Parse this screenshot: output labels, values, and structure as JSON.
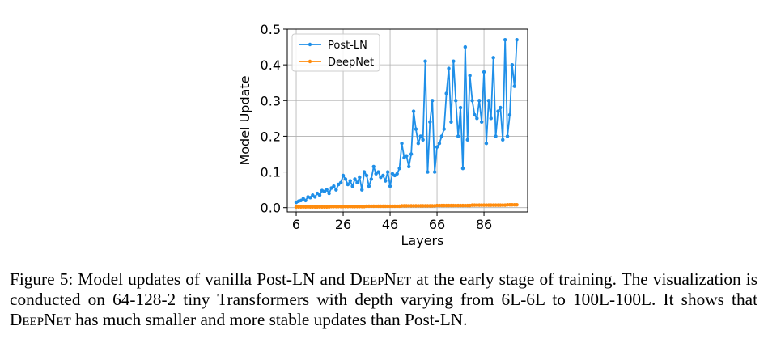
{
  "chart_data": {
    "type": "line",
    "xlabel": "Layers",
    "ylabel": "Model Update",
    "x": [
      6,
      7,
      8,
      9,
      10,
      11,
      12,
      13,
      14,
      15,
      16,
      17,
      18,
      19,
      20,
      21,
      22,
      23,
      24,
      25,
      26,
      27,
      28,
      29,
      30,
      31,
      32,
      33,
      34,
      35,
      36,
      37,
      38,
      39,
      40,
      41,
      42,
      43,
      44,
      45,
      46,
      47,
      48,
      49,
      50,
      51,
      52,
      53,
      54,
      55,
      56,
      57,
      58,
      59,
      60,
      61,
      62,
      63,
      64,
      65,
      66,
      67,
      68,
      69,
      70,
      71,
      72,
      73,
      74,
      75,
      76,
      77,
      78,
      79,
      80,
      81,
      82,
      83,
      84,
      85,
      86,
      87,
      88,
      89,
      90,
      91,
      92,
      93,
      94,
      95,
      96,
      97,
      98,
      99,
      100
    ],
    "series": [
      {
        "name": "Post-LN",
        "color": "#1f8fe8",
        "values": [
          0.015,
          0.018,
          0.02,
          0.025,
          0.02,
          0.03,
          0.028,
          0.035,
          0.03,
          0.04,
          0.035,
          0.048,
          0.045,
          0.05,
          0.04,
          0.055,
          0.06,
          0.05,
          0.065,
          0.07,
          0.09,
          0.08,
          0.065,
          0.075,
          0.06,
          0.08,
          0.07,
          0.085,
          0.05,
          0.1,
          0.09,
          0.06,
          0.08,
          0.115,
          0.095,
          0.1,
          0.085,
          0.09,
          0.075,
          0.1,
          0.06,
          0.095,
          0.09,
          0.095,
          0.11,
          0.18,
          0.14,
          0.145,
          0.115,
          0.15,
          0.27,
          0.22,
          0.18,
          0.2,
          0.19,
          0.41,
          0.1,
          0.24,
          0.3,
          0.1,
          0.17,
          0.18,
          0.2,
          0.22,
          0.32,
          0.39,
          0.24,
          0.41,
          0.3,
          0.2,
          0.28,
          0.11,
          0.45,
          0.19,
          0.37,
          0.3,
          0.26,
          0.25,
          0.3,
          0.24,
          0.38,
          0.18,
          0.3,
          0.25,
          0.42,
          0.2,
          0.27,
          0.28,
          0.19,
          0.47,
          0.2,
          0.26,
          0.4,
          0.34,
          0.47
        ]
      },
      {
        "name": "DeepNet",
        "color": "#ff8c0e",
        "values": [
          0.002,
          0.002,
          0.002,
          0.002,
          0.002,
          0.002,
          0.002,
          0.002,
          0.002,
          0.002,
          0.002,
          0.002,
          0.002,
          0.002,
          0.002,
          0.003,
          0.003,
          0.003,
          0.003,
          0.003,
          0.003,
          0.003,
          0.003,
          0.003,
          0.003,
          0.003,
          0.003,
          0.003,
          0.003,
          0.003,
          0.004,
          0.004,
          0.004,
          0.004,
          0.004,
          0.004,
          0.004,
          0.004,
          0.004,
          0.004,
          0.004,
          0.004,
          0.004,
          0.004,
          0.004,
          0.005,
          0.005,
          0.005,
          0.005,
          0.005,
          0.005,
          0.005,
          0.005,
          0.005,
          0.005,
          0.005,
          0.005,
          0.005,
          0.005,
          0.005,
          0.006,
          0.006,
          0.006,
          0.006,
          0.006,
          0.006,
          0.006,
          0.006,
          0.006,
          0.006,
          0.006,
          0.006,
          0.006,
          0.006,
          0.006,
          0.007,
          0.007,
          0.007,
          0.007,
          0.007,
          0.007,
          0.007,
          0.007,
          0.007,
          0.007,
          0.007,
          0.007,
          0.007,
          0.007,
          0.007,
          0.008,
          0.008,
          0.008,
          0.008,
          0.008
        ]
      }
    ],
    "xlim": [
      2.2,
      104.6
    ],
    "xticks": [
      6,
      26,
      46,
      66,
      86
    ],
    "ylim": [
      -0.012,
      0.5
    ],
    "yticks": [
      {
        "value": 0,
        "label": "0.0"
      },
      0.1,
      0.2,
      0.3,
      0.4,
      0.5
    ],
    "grid": true,
    "legend": "upper-left"
  },
  "caption": {
    "parts": [
      "Figure 5: Model updates of vanilla Post-LN and ",
      "DeepNet",
      " at the early stage of training.  The visualization is conducted on 64-128-2 tiny Transformers with depth varying from 6L-6L to 100L-100L. It shows that ",
      "DeepNet",
      " has much smaller and more stable updates than Post-LN."
    ]
  }
}
